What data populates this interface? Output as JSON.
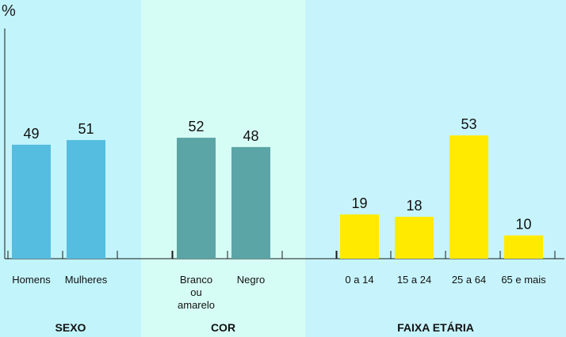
{
  "chart_data": {
    "type": "bar",
    "ylabel": "%",
    "ylim": [
      0,
      60
    ],
    "groups": [
      {
        "name": "SEXO",
        "background": "#c2f4fb",
        "bar_color": "#55bddf",
        "categories": [
          {
            "label": [
              "Homens"
            ],
            "value": 49
          },
          {
            "label": [
              "Mulheres"
            ],
            "value": 51
          }
        ]
      },
      {
        "name": "COR",
        "background": "#d6fdf5",
        "bar_color": "#5ba5a6",
        "categories": [
          {
            "label": [
              "Branco",
              "ou",
              "amarelo"
            ],
            "value": 52
          },
          {
            "label": [
              "Negro"
            ],
            "value": 48
          }
        ]
      },
      {
        "name": "FAIXA ETÁRIA",
        "background": "#c7f4fc",
        "bar_color": "#ffea00",
        "categories": [
          {
            "label": [
              "0 a 14"
            ],
            "value": 19
          },
          {
            "label": [
              "15 a 24"
            ],
            "value": 18
          },
          {
            "label": [
              "25 a 64"
            ],
            "value": 53
          },
          {
            "label": [
              "65 e mais"
            ],
            "value": 10
          }
        ]
      }
    ]
  }
}
